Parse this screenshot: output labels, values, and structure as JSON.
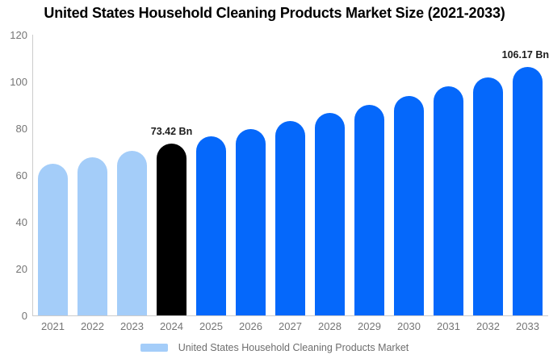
{
  "title": "United States Household Cleaning Products Market Size (2021-2033)",
  "legend": {
    "label": "United States Household Cleaning Products Market",
    "swatch_color": "#a4cdf9"
  },
  "colors": {
    "historical": "#a4cdf9",
    "base_year": "#000000",
    "forecast": "#0568fb",
    "axis_line": "#cccccc",
    "tick_text": "#757575",
    "value_label_text": "#1d1d1d"
  },
  "chart_data": {
    "type": "bar",
    "title": "United States Household Cleaning Products Market Size (2021-2033)",
    "xlabel": "",
    "ylabel": "",
    "unit": "Bn",
    "ylim": [
      0,
      120
    ],
    "yticks": [
      0,
      20,
      40,
      60,
      80,
      100,
      120
    ],
    "grid": false,
    "legend_position": "bottom",
    "categories": [
      "2021",
      "2022",
      "2023",
      "2024",
      "2025",
      "2026",
      "2027",
      "2028",
      "2029",
      "2030",
      "2031",
      "2032",
      "2033"
    ],
    "series": [
      {
        "name": "United States Household Cleaning Products Market",
        "values": [
          64.9,
          67.6,
          70.5,
          73.42,
          76.5,
          79.7,
          83.0,
          86.5,
          90.1,
          93.9,
          97.8,
          101.9,
          106.17
        ]
      }
    ],
    "bars": [
      {
        "year": "2021",
        "value": 64.9,
        "role": "historical"
      },
      {
        "year": "2022",
        "value": 67.6,
        "role": "historical"
      },
      {
        "year": "2023",
        "value": 70.5,
        "role": "historical"
      },
      {
        "year": "2024",
        "value": 73.42,
        "role": "base_year",
        "label": "73.42 Bn",
        "label_align": "centered"
      },
      {
        "year": "2025",
        "value": 76.5,
        "role": "forecast"
      },
      {
        "year": "2026",
        "value": 79.7,
        "role": "forecast"
      },
      {
        "year": "2027",
        "value": 83.0,
        "role": "forecast"
      },
      {
        "year": "2028",
        "value": 86.5,
        "role": "forecast"
      },
      {
        "year": "2029",
        "value": 90.1,
        "role": "forecast"
      },
      {
        "year": "2030",
        "value": 93.9,
        "role": "forecast"
      },
      {
        "year": "2031",
        "value": 97.8,
        "role": "forecast"
      },
      {
        "year": "2032",
        "value": 101.9,
        "role": "forecast"
      },
      {
        "year": "2033",
        "value": 106.17,
        "role": "forecast",
        "label": "106.17 Bn",
        "label_align": "right"
      }
    ]
  }
}
